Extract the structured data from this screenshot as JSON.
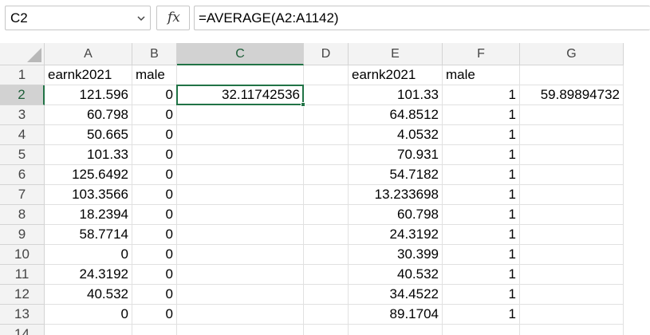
{
  "name_box": {
    "value": "C2"
  },
  "fx_label": "fx",
  "formula_bar": {
    "value": "=AVERAGE(A2:A1142)"
  },
  "columns": [
    "A",
    "B",
    "C",
    "D",
    "E",
    "F",
    "G"
  ],
  "selected_column": "C",
  "selected_row": "2",
  "rows": [
    {
      "num": "1",
      "A": "earnk2021",
      "B": "male",
      "C": "",
      "D": "",
      "E": "earnk2021",
      "F": "male",
      "G": ""
    },
    {
      "num": "2",
      "A": "121.596",
      "B": "0",
      "C": "32.11742536",
      "D": "",
      "E": "101.33",
      "F": "1",
      "G": "59.89894732"
    },
    {
      "num": "3",
      "A": "60.798",
      "B": "0",
      "C": "",
      "D": "",
      "E": "64.8512",
      "F": "1",
      "G": ""
    },
    {
      "num": "4",
      "A": "50.665",
      "B": "0",
      "C": "",
      "D": "",
      "E": "4.0532",
      "F": "1",
      "G": ""
    },
    {
      "num": "5",
      "A": "101.33",
      "B": "0",
      "C": "",
      "D": "",
      "E": "70.931",
      "F": "1",
      "G": ""
    },
    {
      "num": "6",
      "A": "125.6492",
      "B": "0",
      "C": "",
      "D": "",
      "E": "54.7182",
      "F": "1",
      "G": ""
    },
    {
      "num": "7",
      "A": "103.3566",
      "B": "0",
      "C": "",
      "D": "",
      "E": "13.233698",
      "F": "1",
      "G": ""
    },
    {
      "num": "8",
      "A": "18.2394",
      "B": "0",
      "C": "",
      "D": "",
      "E": "60.798",
      "F": "1",
      "G": ""
    },
    {
      "num": "9",
      "A": "58.7714",
      "B": "0",
      "C": "",
      "D": "",
      "E": "24.3192",
      "F": "1",
      "G": ""
    },
    {
      "num": "10",
      "A": "0",
      "B": "0",
      "C": "",
      "D": "",
      "E": "30.399",
      "F": "1",
      "G": ""
    },
    {
      "num": "11",
      "A": "24.3192",
      "B": "0",
      "C": "",
      "D": "",
      "E": "40.532",
      "F": "1",
      "G": ""
    },
    {
      "num": "12",
      "A": "40.532",
      "B": "0",
      "C": "",
      "D": "",
      "E": "34.4522",
      "F": "1",
      "G": ""
    },
    {
      "num": "13",
      "A": "0",
      "B": "0",
      "C": "",
      "D": "",
      "E": "89.1704",
      "F": "1",
      "G": ""
    },
    {
      "num": "14",
      "A": "",
      "B": "",
      "C": "",
      "D": "",
      "E": "",
      "F": "",
      "G": ""
    }
  ],
  "colors": {
    "accent": "#217346",
    "header_bg": "#f3f3f3",
    "header_selected_bg": "#d2d2d2",
    "gridline": "#e1e1e1"
  }
}
